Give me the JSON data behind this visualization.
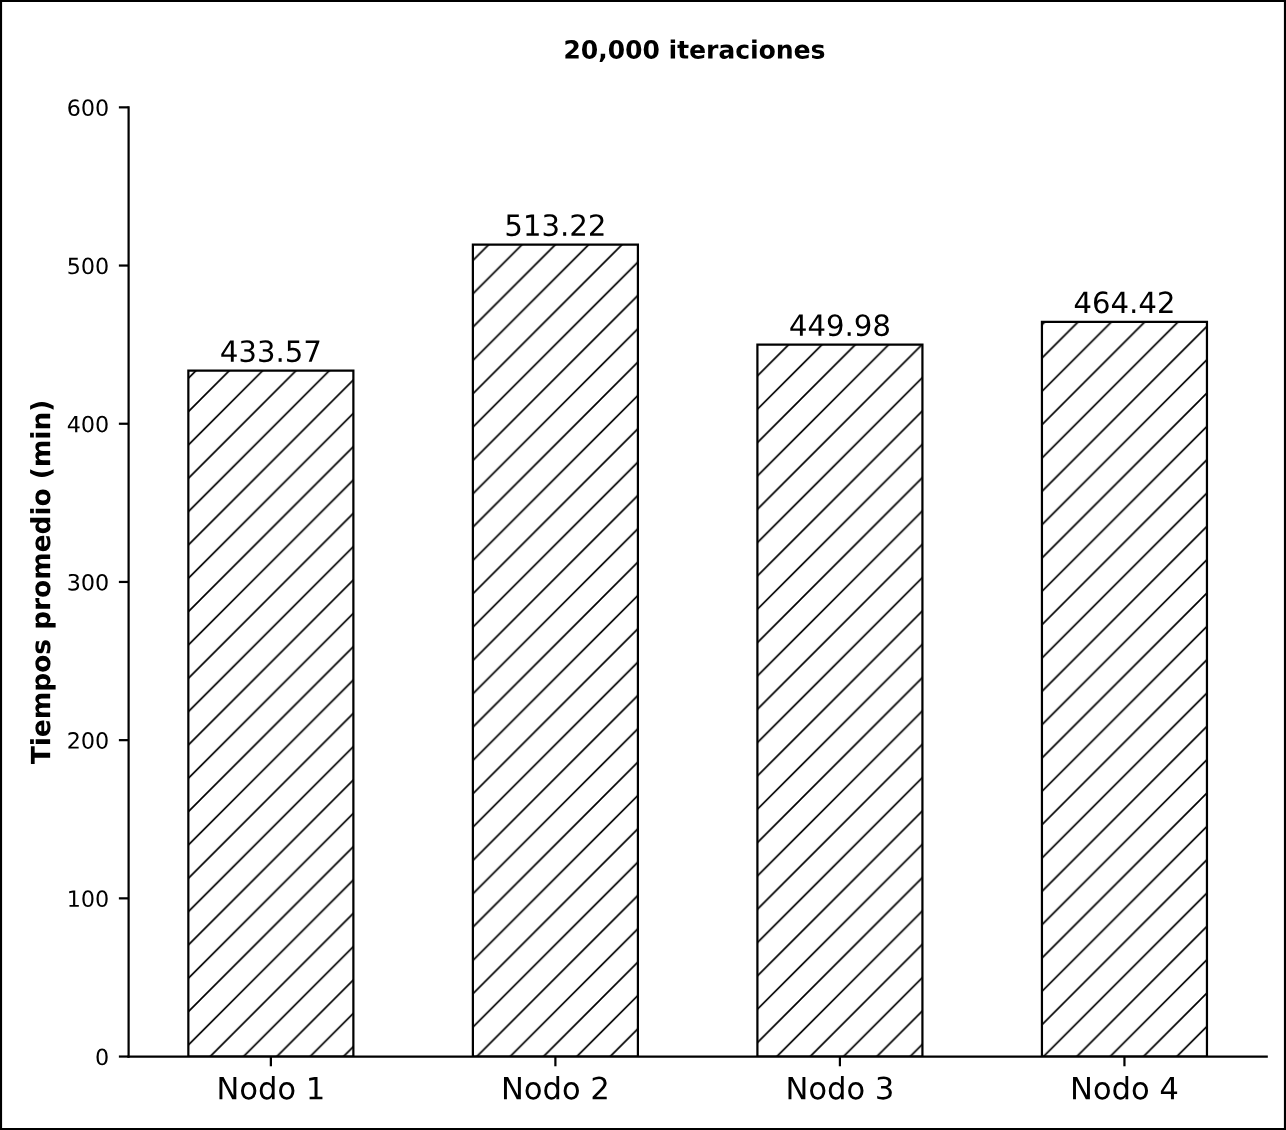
{
  "chart_data": {
    "type": "bar",
    "title": "20,000 iteraciones",
    "ylabel": "Tiempos promedio (min)",
    "categories": [
      "Nodo 1",
      "Nodo 2",
      "Nodo 3",
      "Nodo 4"
    ],
    "values": [
      433.57,
      513.22,
      449.98,
      464.42
    ],
    "color": "#000000",
    "ylim": [
      0,
      600
    ],
    "yticks": [
      0,
      100,
      200,
      300,
      400,
      500,
      600
    ],
    "data_labels": true,
    "grid": false,
    "legend": false
  }
}
